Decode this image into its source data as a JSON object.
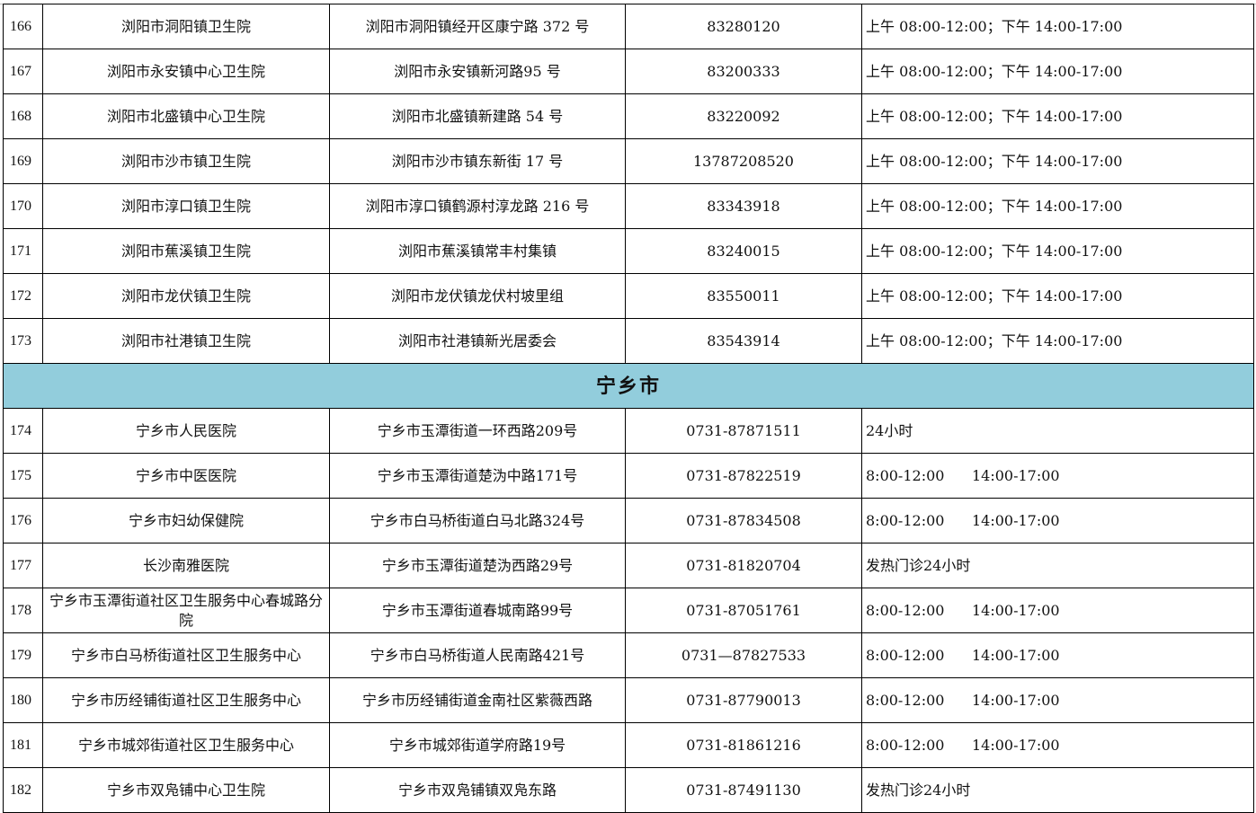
{
  "sections": [
    {
      "title": "",
      "rows": [
        {
          "no": "166",
          "name": "浏阳市洞阳镇卫生院",
          "address": "浏阳市洞阳镇经开区康宁路 372 号",
          "phone": "83280120",
          "hours": "上午 08:00-12:00；下午 14:00-17:00"
        },
        {
          "no": "167",
          "name": "浏阳市永安镇中心卫生院",
          "address": "浏阳市永安镇新河路95 号",
          "phone": "83200333",
          "hours": "上午 08:00-12:00；下午 14:00-17:00"
        },
        {
          "no": "168",
          "name": "浏阳市北盛镇中心卫生院",
          "address": "浏阳市北盛镇新建路 54 号",
          "phone": "83220092",
          "hours": "上午 08:00-12:00；下午 14:00-17:00"
        },
        {
          "no": "169",
          "name": "浏阳市沙市镇卫生院",
          "address": "浏阳市沙市镇东新街 17 号",
          "phone": "13787208520",
          "hours": "上午 08:00-12:00；下午 14:00-17:00"
        },
        {
          "no": "170",
          "name": "浏阳市淳口镇卫生院",
          "address": "浏阳市淳口镇鹤源村淳龙路 216 号",
          "phone": "83343918",
          "hours": "上午 08:00-12:00；下午 14:00-17:00"
        },
        {
          "no": "171",
          "name": "浏阳市蕉溪镇卫生院",
          "address": "浏阳市蕉溪镇常丰村集镇",
          "phone": "83240015",
          "hours": "上午 08:00-12:00；下午 14:00-17:00"
        },
        {
          "no": "172",
          "name": "浏阳市龙伏镇卫生院",
          "address": "浏阳市龙伏镇龙伏村坡里组",
          "phone": "83550011",
          "hours": "上午 08:00-12:00；下午 14:00-17:00"
        },
        {
          "no": "173",
          "name": "浏阳市社港镇卫生院",
          "address": "浏阳市社港镇新光居委会",
          "phone": "83543914",
          "hours": "上午 08:00-12:00；下午 14:00-17:00"
        }
      ]
    },
    {
      "title": "宁乡市",
      "rows": [
        {
          "no": "174",
          "name": "宁乡市人民医院",
          "address": "宁乡市玉潭街道一环西路209号",
          "phone": "0731-87871511",
          "hours": "24小时"
        },
        {
          "no": "175",
          "name": "宁乡市中医医院",
          "address": "宁乡市玉潭街道楚沩中路171号",
          "phone": "0731-87822519",
          "hours": "8:00-12:00      14:00-17:00"
        },
        {
          "no": "176",
          "name": "宁乡市妇幼保健院",
          "address": "宁乡市白马桥街道白马北路324号",
          "phone": "0731-87834508",
          "hours": "8:00-12:00      14:00-17:00"
        },
        {
          "no": "177",
          "name": "长沙南雅医院",
          "address": "宁乡市玉潭街道楚沩西路29号",
          "phone": "0731-81820704",
          "hours": "发热门诊24小时"
        },
        {
          "no": "178",
          "name": "宁乡市玉潭街道社区卫生服务中心春城路分院",
          "address": "宁乡市玉潭街道春城南路99号",
          "phone": "0731-87051761",
          "hours": "8:00-12:00      14:00-17:00"
        },
        {
          "no": "179",
          "name": "宁乡市白马桥街道社区卫生服务中心",
          "address": "宁乡市白马桥街道人民南路421号",
          "phone": "0731—87827533",
          "hours": "8:00-12:00      14:00-17:00"
        },
        {
          "no": "180",
          "name": "宁乡市历经铺街道社区卫生服务中心",
          "address": "宁乡市历经铺街道金南社区紫薇西路",
          "phone": "0731-87790013",
          "hours": "8:00-12:00      14:00-17:00"
        },
        {
          "no": "181",
          "name": "宁乡市城郊街道社区卫生服务中心",
          "address": "宁乡市城郊街道学府路19号",
          "phone": "0731-81861216",
          "hours": "8:00-12:00      14:00-17:00"
        },
        {
          "no": "182",
          "name": "宁乡市双凫铺中心卫生院",
          "address": "宁乡市双凫铺镇双凫东路",
          "phone": "0731-87491130",
          "hours": "发热门诊24小时"
        }
      ]
    }
  ]
}
